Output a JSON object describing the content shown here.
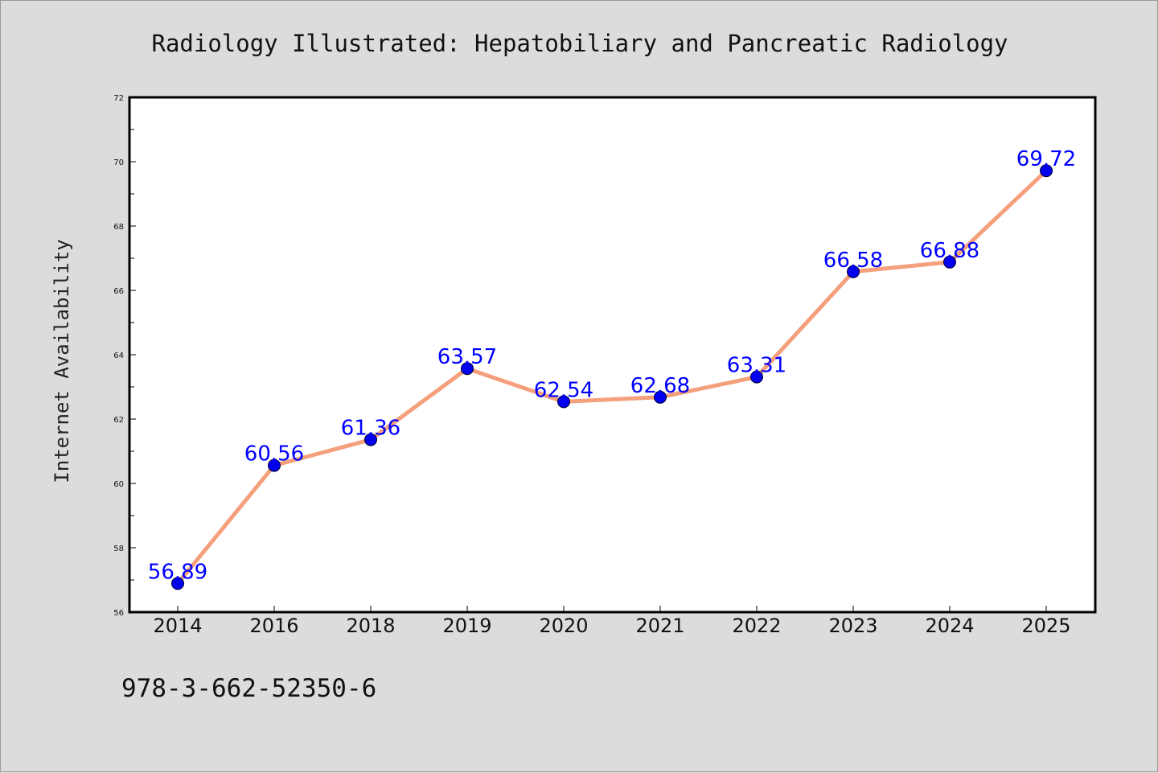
{
  "chart_data": {
    "type": "line",
    "title": "Radiology Illustrated: Hepatobiliary and Pancreatic Radiology",
    "xlabel": "",
    "ylabel": "Internet Availability",
    "categories": [
      "2014",
      "2016",
      "2018",
      "2019",
      "2020",
      "2021",
      "2022",
      "2023",
      "2024",
      "2025"
    ],
    "series": [
      {
        "values": [
          56.89,
          60.56,
          61.36,
          63.57,
          62.54,
          62.68,
          63.31,
          66.58,
          66.88,
          69.72
        ],
        "line_color": "#f4a07c",
        "marker_color": "#0000ee"
      }
    ],
    "data_labels": [
      "56.89",
      "60.56",
      "61.36",
      "63.57",
      "62.54",
      "62.68",
      "63.31",
      "66.58",
      "66.88",
      "69.72"
    ],
    "ylim": [
      56,
      72
    ],
    "yticks": [
      "56",
      "58",
      "60",
      "62",
      "64",
      "66",
      "68",
      "70",
      "72"
    ],
    "grid": false,
    "label_color": "#0000ff"
  },
  "footer": {
    "isbn": "978-3-662-52350-6"
  }
}
